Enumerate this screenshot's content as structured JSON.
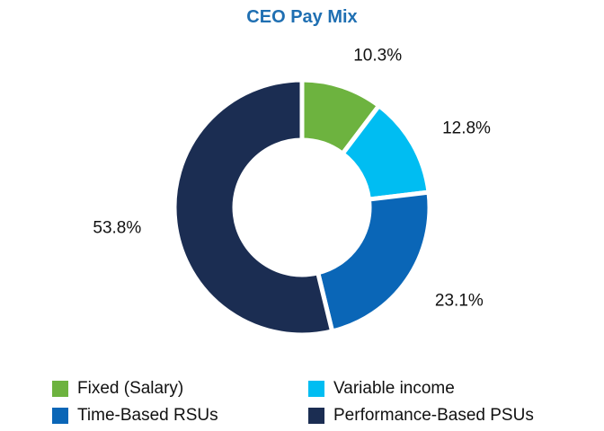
{
  "chart_data": {
    "type": "pie",
    "style": "donut",
    "title": "CEO Pay Mix",
    "categories": [
      "Fixed (Salary)",
      "Variable income",
      "Time-Based RSUs",
      "Performance-Based PSUs"
    ],
    "values": [
      10.3,
      12.8,
      23.1,
      53.8
    ],
    "value_labels": [
      "10.3%",
      "12.8%",
      "23.1%",
      "53.8%"
    ],
    "colors": [
      "#6db33f",
      "#00bdf2",
      "#0a66b7",
      "#1b2d52"
    ],
    "unit": "%",
    "legend_position": "bottom"
  }
}
